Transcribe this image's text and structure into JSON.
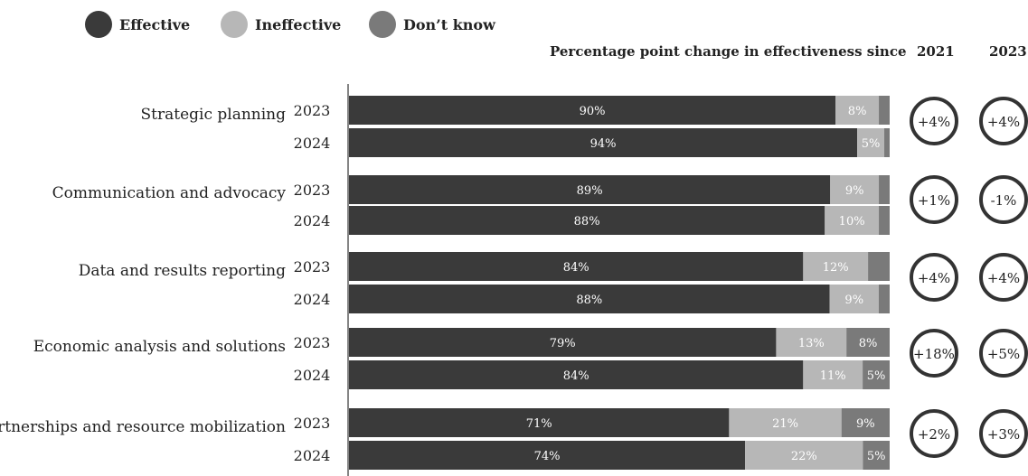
{
  "legend": [
    {
      "label": "Effective",
      "color": "#3a3a3a"
    },
    {
      "label": "Ineffective",
      "color": "#b7b7b7"
    },
    {
      "label": "Don’t know",
      "color": "#7a7a7a"
    }
  ],
  "header": {
    "change_title": "Percentage point change in effectiveness since",
    "col_2021": "2021",
    "col_2023": "2023"
  },
  "chart_data": {
    "type": "bar",
    "orientation": "horizontal",
    "stacked": true,
    "xlim": [
      0,
      100
    ],
    "series_names": [
      "Effective",
      "Ineffective",
      "Don’t know"
    ],
    "colors": {
      "effective": "#3a3a3a",
      "ineffective": "#b7b7b7",
      "dontknow": "#7a7a7a"
    },
    "groups": [
      {
        "category": "Strategic planning",
        "rows": [
          {
            "year": "2023",
            "values": [
              90,
              8,
              2
            ],
            "labels": [
              "90%",
              "8%",
              ""
            ]
          },
          {
            "year": "2024",
            "values": [
              94,
              5,
              1
            ],
            "labels": [
              "94%",
              "5%",
              ""
            ]
          }
        ],
        "change_since_2021": "+4%",
        "change_since_2023": "+4%"
      },
      {
        "category": "Communication and advocacy",
        "rows": [
          {
            "year": "2023",
            "values": [
              89,
              9,
              2
            ],
            "labels": [
              "89%",
              "9%",
              ""
            ]
          },
          {
            "year": "2024",
            "values": [
              88,
              10,
              2
            ],
            "labels": [
              "88%",
              "10%",
              ""
            ]
          }
        ],
        "change_since_2021": "+1%",
        "change_since_2023": "-1%"
      },
      {
        "category": "Data and results reporting",
        "rows": [
          {
            "year": "2023",
            "values": [
              84,
              12,
              4
            ],
            "labels": [
              "84%",
              "12%",
              ""
            ]
          },
          {
            "year": "2024",
            "values": [
              88,
              9,
              2
            ],
            "labels": [
              "88%",
              "9%",
              ""
            ]
          }
        ],
        "change_since_2021": "+4%",
        "change_since_2023": "+4%"
      },
      {
        "category": "Economic analysis and solutions",
        "rows": [
          {
            "year": "2023",
            "values": [
              79,
              13,
              8
            ],
            "labels": [
              "79%",
              "13%",
              "8%"
            ]
          },
          {
            "year": "2024",
            "values": [
              84,
              11,
              5
            ],
            "labels": [
              "84%",
              "11%",
              "5%"
            ]
          }
        ],
        "change_since_2021": "+18%",
        "change_since_2023": "+5%"
      },
      {
        "category": "Partnerships and resource mobilization",
        "rows": [
          {
            "year": "2023",
            "values": [
              71,
              21,
              9
            ],
            "labels": [
              "71%",
              "21%",
              "9%"
            ]
          },
          {
            "year": "2024",
            "values": [
              74,
              22,
              5
            ],
            "labels": [
              "74%",
              "22%",
              "5%"
            ]
          }
        ],
        "change_since_2021": "+2%",
        "change_since_2023": "+3%"
      }
    ]
  }
}
